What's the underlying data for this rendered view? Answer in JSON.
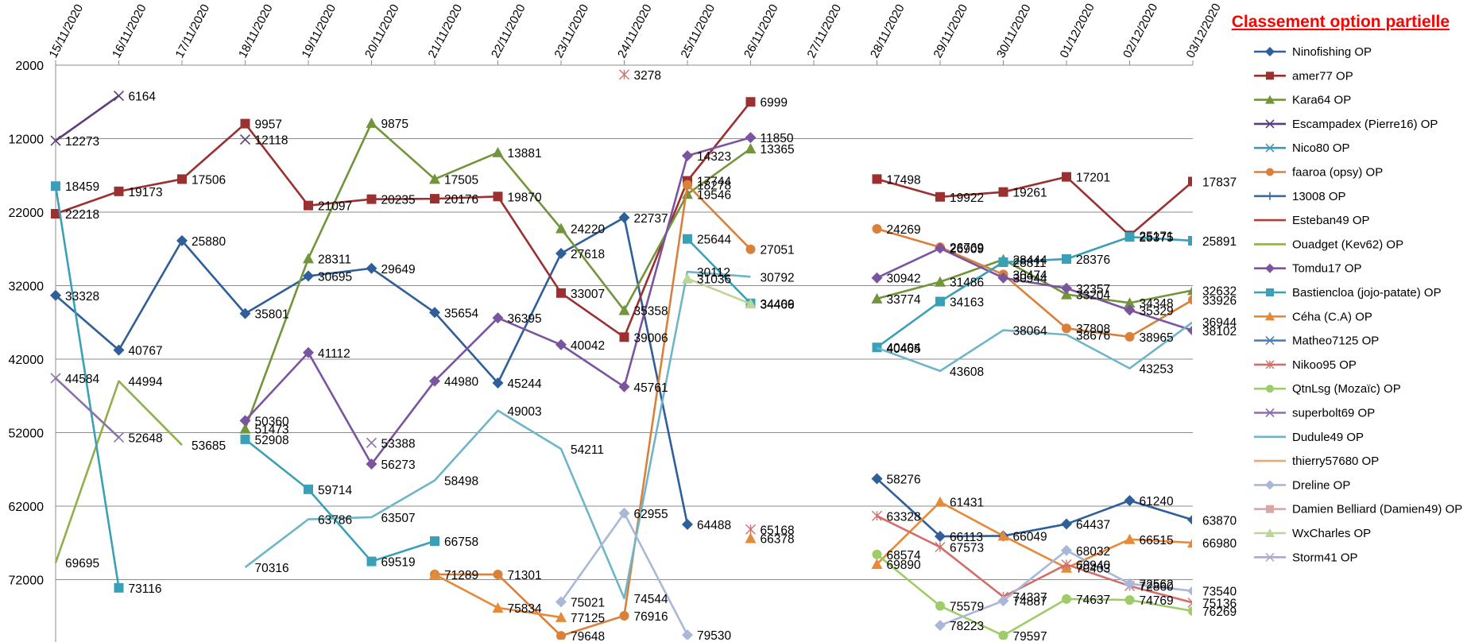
{
  "chart_data": {
    "type": "line",
    "title": "Classement option partielle",
    "xlabel": "",
    "ylabel": "",
    "categories": [
      "15/11/2020",
      "16/11/2020",
      "17/11/2020",
      "18/11/2020",
      "19/11/2020",
      "20/11/2020",
      "21/11/2020",
      "22/11/2020",
      "23/11/2020",
      "24/11/2020",
      "25/11/2020",
      "26/11/2020",
      "27/11/2020",
      "28/11/2020",
      "29/11/2020",
      "30/11/2020",
      "01/12/2020",
      "02/12/2020",
      "03/12/2020"
    ],
    "y_ticks": [
      2000,
      12000,
      22000,
      32000,
      42000,
      52000,
      62000,
      72000
    ],
    "ylim": [
      2000,
      80000
    ],
    "y_reversed": true,
    "grid": true,
    "legend_position": "right",
    "series": [
      {
        "name": "Ninofishing OP",
        "color": "#2e5f99",
        "marker": "diamond",
        "values": [
          33328,
          40767,
          25880,
          35801,
          30695,
          29649,
          35654,
          45244,
          27618,
          22737,
          64488,
          null,
          null,
          58276,
          66113,
          66049,
          64437,
          61240,
          63870
        ],
        "labels": [
          "33328",
          "40767",
          "25880",
          "35801",
          "30695",
          "29649",
          "35654",
          "45244",
          "27618",
          "22737",
          "64488",
          "",
          "",
          "58276",
          "66113",
          "66049",
          "64437",
          "61240",
          "63870"
        ]
      },
      {
        "name": "amer77 OP",
        "color": "#9b3030",
        "marker": "square",
        "values": [
          22218,
          19173,
          17506,
          9957,
          21097,
          20235,
          20176,
          19870,
          33007,
          39006,
          17744,
          6999,
          null,
          17498,
          19922,
          19261,
          17201,
          25171,
          17837
        ],
        "labels": [
          "22218",
          "19173",
          "17506",
          "9957",
          "21097",
          "20235",
          "20176",
          "19870",
          "33007",
          "39006",
          "17744",
          "6999",
          "",
          "17498",
          "19922",
          "19261",
          "17201",
          "25171",
          "17837"
        ]
      },
      {
        "name": "Kara64  OP",
        "color": "#72943a",
        "marker": "triangle",
        "values": [
          null,
          null,
          null,
          51473,
          28311,
          9875,
          17505,
          13881,
          24220,
          35358,
          19546,
          13365,
          null,
          33774,
          31486,
          28444,
          33204,
          34348,
          32632
        ],
        "labels": [
          "",
          "",
          "",
          "51473",
          "28311",
          "9875",
          "17505",
          "13881",
          "24220",
          "35358",
          "19546",
          "13365",
          "",
          "33774",
          "31486",
          "28444",
          "33204",
          "34348",
          "32632"
        ]
      },
      {
        "name": "Escampadex (Pierre16) OP",
        "color": "#5a3d7a",
        "marker": "x",
        "values": [
          12273,
          6164,
          null,
          12118,
          null,
          null,
          null,
          null,
          null,
          null,
          null,
          null,
          null,
          null,
          null,
          null,
          null,
          null,
          null
        ],
        "labels": [
          "12273",
          "6164",
          "",
          "12118",
          "",
          "",
          "",
          "",
          "",
          "",
          "",
          "",
          "",
          "",
          "",
          "",
          "",
          "",
          ""
        ]
      },
      {
        "name": "Nico80 OP",
        "color": "#3d9bb0",
        "marker": "x",
        "values": [
          null,
          null,
          null,
          null,
          null,
          null,
          null,
          null,
          null,
          null,
          null,
          null,
          null,
          null,
          null,
          null,
          null,
          null,
          null
        ],
        "labels": []
      },
      {
        "name": "faaroa (opsy) OP",
        "color": "#d9803a",
        "marker": "circle",
        "values": [
          null,
          null,
          null,
          null,
          null,
          null,
          71289,
          71301,
          79648,
          76916,
          18278,
          27051,
          null,
          24269,
          26769,
          30474,
          37808,
          38965,
          33926
        ],
        "labels": [
          "",
          "",
          "",
          "",
          "",
          "",
          "",
          "71301",
          "79648",
          "76916",
          "18278",
          "27051",
          "",
          "24269",
          "26769",
          "30474",
          "37808",
          "38965",
          "33926"
        ]
      },
      {
        "name": "13008 OP",
        "color": "#3b6ba6",
        "marker": "plus",
        "values": [
          null,
          null,
          null,
          null,
          null,
          null,
          null,
          null,
          null,
          null,
          null,
          null,
          null,
          null,
          null,
          null,
          null,
          null,
          null
        ],
        "labels": []
      },
      {
        "name": "Esteban49 OP",
        "color": "#b03c3c",
        "marker": "none",
        "values": [
          null,
          null,
          null,
          null,
          null,
          null,
          null,
          null,
          null,
          null,
          null,
          null,
          null,
          null,
          null,
          null,
          null,
          null,
          null
        ],
        "labels": []
      },
      {
        "name": "Ouadget (Kev62) OP",
        "color": "#8fb04a",
        "marker": "none",
        "values": [
          69695,
          44994,
          53685,
          null,
          null,
          null,
          null,
          null,
          null,
          null,
          null,
          null,
          null,
          null,
          null,
          null,
          null,
          null,
          null
        ],
        "labels": [
          "69695",
          "44994",
          "53685",
          "",
          "",
          "",
          "",
          "",
          "",
          "",
          "",
          "",
          "",
          "",
          "",
          "",
          "",
          "",
          ""
        ]
      },
      {
        "name": "Tomdu17 OP",
        "color": "#7b54a0",
        "marker": "diamond",
        "values": [
          null,
          null,
          null,
          50360,
          41112,
          56273,
          44980,
          36395,
          40042,
          45761,
          14323,
          11850,
          null,
          30942,
          26909,
          30944,
          32357,
          35329,
          38102
        ],
        "labels": [
          "",
          "",
          "",
          "50360",
          "41112",
          "56273",
          "44980",
          "36395",
          "40042",
          "45761",
          "14323",
          "11850",
          "",
          "30942",
          "26909",
          "30944",
          "32357",
          "35329",
          "38102"
        ]
      },
      {
        "name": "Bastiencloa (jojo-patate) OP",
        "color": "#3aa0b8",
        "marker": "square",
        "values": [
          18459,
          73116,
          null,
          52908,
          59714,
          69519,
          66758,
          null,
          null,
          null,
          25644,
          34409,
          null,
          40404,
          34163,
          28811,
          28376,
          25375,
          25891
        ],
        "labels": [
          "18459",
          "73116",
          "",
          "52908",
          "59714",
          "69519",
          "66758",
          "",
          "",
          "",
          "25644",
          "34409",
          "",
          "40404",
          "34163",
          "28811",
          "28376",
          "25375",
          "25891"
        ]
      },
      {
        "name": "Céha (C.A) OP",
        "color": "#e68a3a",
        "marker": "triangle",
        "values": [
          null,
          null,
          null,
          null,
          null,
          null,
          71289,
          75834,
          77125,
          null,
          null,
          66378,
          null,
          69890,
          61431,
          66049,
          70403,
          66515,
          66980
        ],
        "labels": [
          "",
          "",
          "",
          "",
          "",
          "",
          "71289",
          "75834",
          "77125",
          "",
          "",
          "66378",
          "",
          "69890",
          "61431",
          "",
          "70403",
          "66515",
          "66980"
        ]
      },
      {
        "name": "Matheo7125 OP",
        "color": "#4f7fb0",
        "marker": "x",
        "values": [
          null,
          null,
          null,
          null,
          null,
          null,
          null,
          null,
          null,
          null,
          null,
          null,
          null,
          null,
          null,
          null,
          null,
          null,
          null
        ],
        "labels": []
      },
      {
        "name": "Nikoo95 OP",
        "color": "#d0706c",
        "marker": "asterisk",
        "values": [
          null,
          null,
          null,
          null,
          null,
          null,
          null,
          null,
          null,
          3278,
          null,
          65168,
          null,
          63328,
          67573,
          74337,
          69940,
          72860,
          75136
        ],
        "labels": [
          "",
          "",
          "",
          "",
          "",
          "",
          "",
          "",
          "",
          "3278",
          "",
          "65168",
          "",
          "63328",
          "67573",
          "74337",
          "69940",
          "72860",
          "75136"
        ]
      },
      {
        "name": "QtnLsg (Mozaïc) OP",
        "color": "#9ecc68",
        "marker": "circle",
        "values": [
          null,
          null,
          null,
          null,
          null,
          null,
          null,
          null,
          null,
          null,
          null,
          null,
          null,
          68574,
          75579,
          79597,
          74637,
          74769,
          76269
        ],
        "labels": [
          "",
          "",
          "",
          "",
          "",
          "",
          "",
          "",
          "",
          "",
          "",
          "",
          "",
          "68574",
          "75579",
          "79597",
          "74637",
          "74769",
          "76269"
        ]
      },
      {
        "name": "superbolt69 OP",
        "color": "#8a72a8",
        "marker": "x",
        "values": [
          44584,
          52648,
          null,
          null,
          null,
          53388,
          null,
          null,
          null,
          null,
          null,
          null,
          null,
          null,
          null,
          null,
          null,
          null,
          null
        ],
        "labels": [
          "44584",
          "52648",
          "",
          "",
          "",
          "53388",
          "",
          "",
          "",
          "",
          "",
          "",
          "",
          "",
          "",
          "",
          "",
          "",
          ""
        ]
      },
      {
        "name": "Dudule49 OP",
        "color": "#6fb5c9",
        "marker": "none",
        "values": [
          null,
          null,
          null,
          70316,
          63786,
          63507,
          58498,
          49003,
          54211,
          74544,
          30112,
          30792,
          null,
          40465,
          43608,
          38064,
          38676,
          43253,
          36944
        ],
        "labels": [
          "",
          "",
          "",
          "70316",
          "63786",
          "63507",
          "58498",
          "49003",
          "54211",
          "74544",
          "30112",
          "30792",
          "",
          "40465",
          "43608",
          "38064",
          "38676",
          "43253",
          "36944"
        ]
      },
      {
        "name": "thierry57680 OP",
        "color": "#e8a878",
        "marker": "none",
        "values": [
          null,
          null,
          null,
          null,
          null,
          null,
          null,
          null,
          null,
          null,
          null,
          null,
          null,
          null,
          null,
          null,
          null,
          null,
          null
        ],
        "labels": []
      },
      {
        "name": "Dreline OP",
        "color": "#a9b7d8",
        "marker": "diamond",
        "values": [
          null,
          null,
          null,
          null,
          null,
          null,
          null,
          null,
          75021,
          62955,
          79530,
          null,
          null,
          null,
          78223,
          74887,
          68032,
          72562,
          73540
        ],
        "labels": [
          "",
          "",
          "",
          "",
          "",
          "",
          "",
          "",
          "75021",
          "62955",
          "79530",
          "",
          "",
          "",
          "78223",
          "74887",
          "68032",
          "72562",
          "73540"
        ]
      },
      {
        "name": "Damien Belliard (Damien49) OP",
        "color": "#d8a8a8",
        "marker": "square",
        "values": [
          null,
          null,
          null,
          null,
          null,
          null,
          null,
          null,
          null,
          null,
          null,
          null,
          null,
          null,
          null,
          null,
          null,
          null,
          null
        ],
        "labels": []
      },
      {
        "name": "WxCharles OP",
        "color": "#bcd698",
        "marker": "triangle",
        "values": [
          null,
          null,
          null,
          null,
          null,
          null,
          null,
          null,
          null,
          null,
          31036,
          34466,
          null,
          null,
          null,
          null,
          null,
          null,
          null
        ],
        "labels": [
          "",
          "",
          "",
          "",
          "",
          "",
          "",
          "",
          "",
          "",
          "31036",
          "34466",
          "",
          "",
          "",
          "",
          "",
          "",
          ""
        ]
      },
      {
        "name": "Storm41 OP",
        "color": "#b0a8cc",
        "marker": "x",
        "values": [
          null,
          null,
          null,
          null,
          null,
          null,
          null,
          null,
          null,
          null,
          null,
          null,
          null,
          null,
          null,
          null,
          null,
          null,
          null
        ],
        "labels": []
      }
    ]
  }
}
